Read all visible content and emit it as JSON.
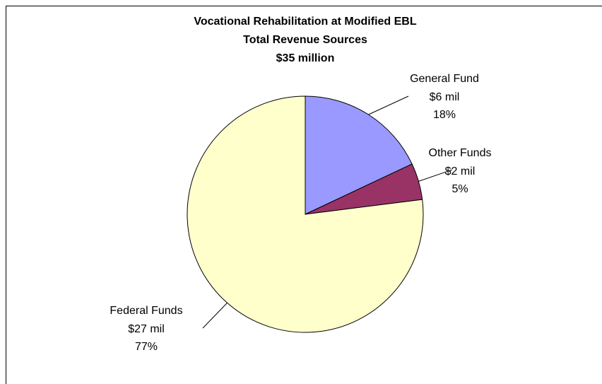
{
  "chart_data": {
    "type": "pie",
    "title": "Vocational Rehabilitation at Modified EBL",
    "subtitle": [
      "Total Revenue Sources",
      "$35 million"
    ],
    "categories": [
      "General Fund",
      "Other Funds",
      "Federal Funds"
    ],
    "values": [
      18,
      5,
      77
    ],
    "value_labels": [
      "18%",
      "5%",
      "77%"
    ],
    "amount_labels": [
      "$6 mil",
      "$2 mil",
      "$27 mil"
    ],
    "colors": [
      "#9999ff",
      "#993366",
      "#ffffcc"
    ]
  }
}
